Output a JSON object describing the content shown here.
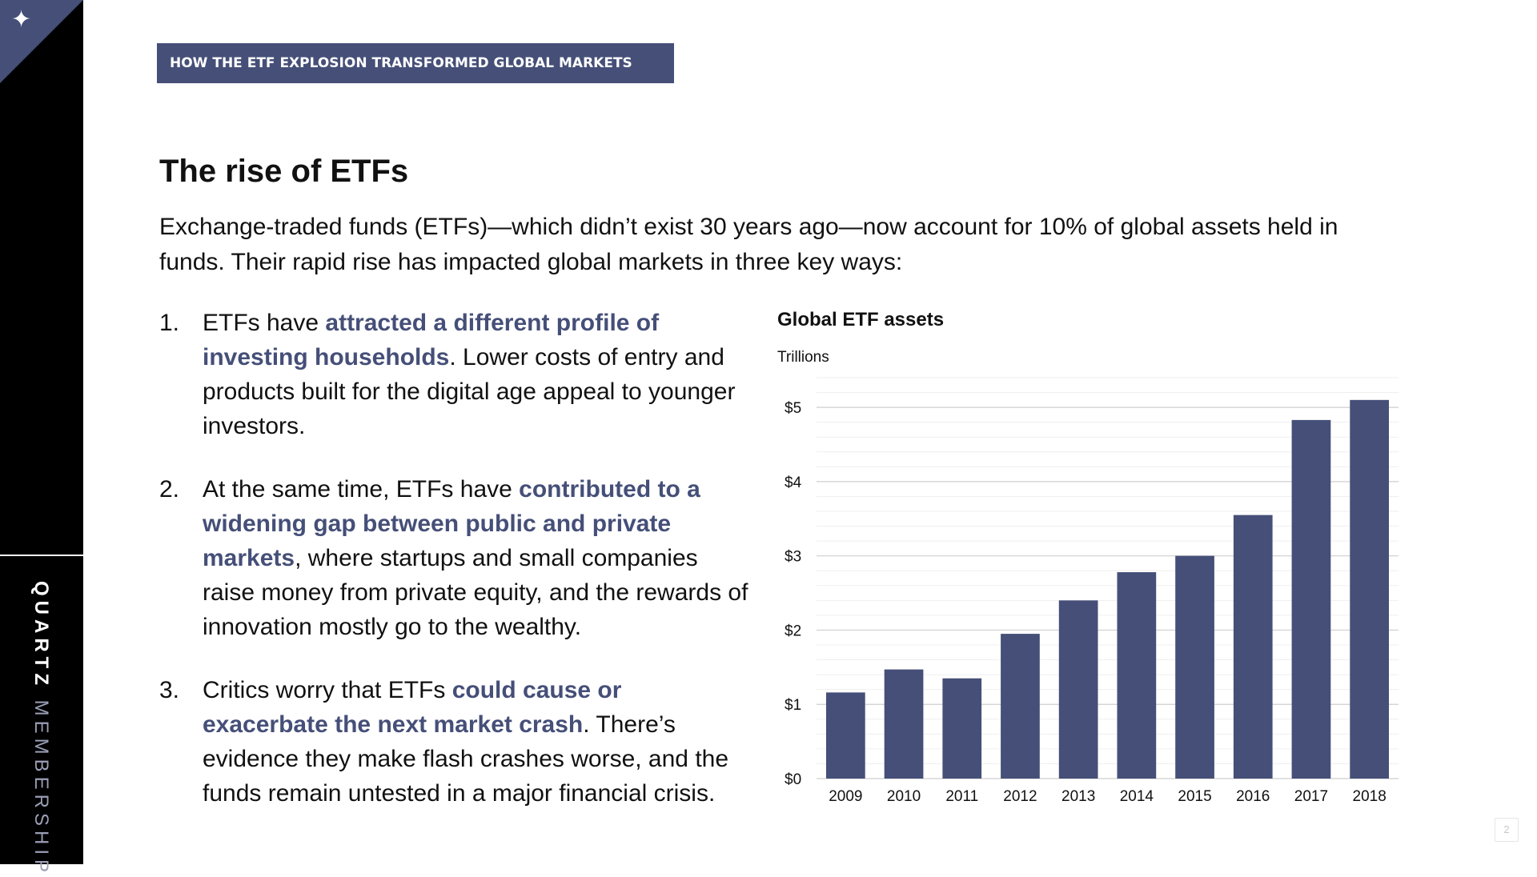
{
  "sidebar": {
    "corner_icon": "star-icon",
    "brand_bold": "QUARTZ",
    "brand_light": "MEMBERSHIP"
  },
  "banner": {
    "text": "HOW THE ETF EXPLOSION TRANSFORMED GLOBAL MARKETS"
  },
  "title": "The rise of ETFs",
  "intro": "Exchange-traded funds (ETFs)—which didn’t exist 30 years ago—now account for 10% of global assets held in funds. Their rapid rise has impacted global markets in three key ways:",
  "points": [
    {
      "num": "1.",
      "pre": "ETFs have ",
      "emphasis": "attracted a different profile of investing households",
      "post": ". Lower costs of entry and products built for the digital age appeal to younger investors."
    },
    {
      "num": "2.",
      "pre": "At the same time, ETFs have ",
      "emphasis": "contributed to a widening gap between public and private markets",
      "post": ", where startups and small companies raise money from private equity, and the rewards of innovation mostly go to the wealthy."
    },
    {
      "num": "3.",
      "pre": "Critics worry that ETFs ",
      "emphasis": "could cause or exacerbate the next market crash",
      "post": ". There’s evidence they make flash crashes worse, and the funds remain untested in a major financial crisis."
    }
  ],
  "chart_data": {
    "type": "bar",
    "title": "Global ETF assets",
    "ylabel": "Trillions",
    "xlabel": "",
    "categories": [
      "2009",
      "2010",
      "2011",
      "2012",
      "2013",
      "2014",
      "2015",
      "2016",
      "2017",
      "2018"
    ],
    "values": [
      1.16,
      1.47,
      1.35,
      1.95,
      2.4,
      2.78,
      3.0,
      3.55,
      4.83,
      5.1
    ],
    "ylim": [
      0,
      5.4
    ],
    "yticks": [
      0,
      1,
      2,
      3,
      4,
      5
    ],
    "ytick_labels": [
      "$0",
      "$1",
      "$2",
      "$3",
      "$4",
      "$5"
    ],
    "grid": true,
    "bar_color": "#454f78"
  },
  "page_number": "2",
  "colors": {
    "accent": "#454f78",
    "sidebar": "#000000"
  }
}
